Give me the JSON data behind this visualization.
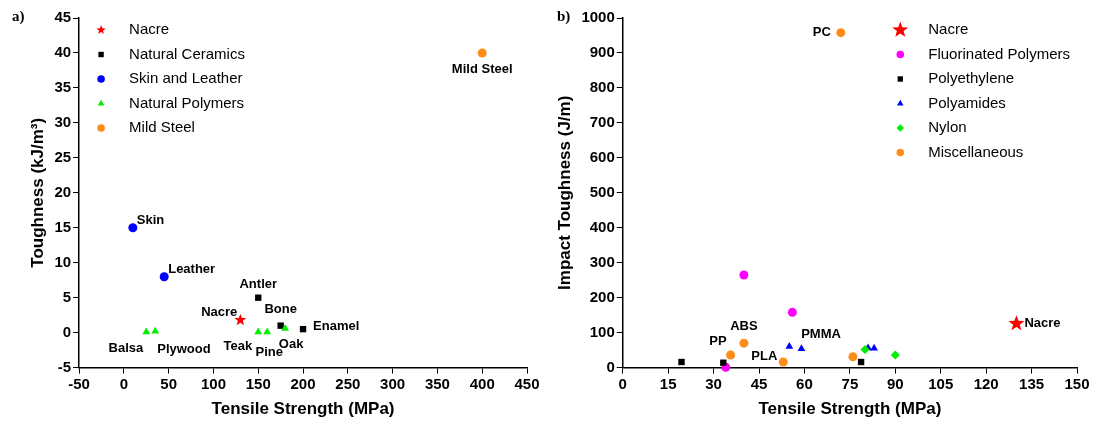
{
  "chart_data": [
    {
      "type": "scatter",
      "title": "a)",
      "xlabel": "Tensile Strength (MPa)",
      "ylabel": "Toughness (kJ/m³)",
      "xlim": [
        -50,
        450
      ],
      "xticks": [
        -50,
        0,
        50,
        100,
        150,
        200,
        250,
        300,
        350,
        400,
        450
      ],
      "ylim": [
        -5,
        45
      ],
      "yticks": [
        -5,
        0,
        5,
        10,
        15,
        20,
        25,
        30,
        35,
        40,
        45
      ],
      "grid": false,
      "legend": "top left",
      "series": [
        {
          "name": "Nacre",
          "color": "#ff0000",
          "marker": "star",
          "x": [
            130
          ],
          "values": [
            1.8
          ]
        },
        {
          "name": "Natural Ceramics",
          "color": "#000000",
          "marker": "square",
          "x": [
            150,
            175,
            200
          ],
          "values": [
            5,
            1,
            0.5
          ]
        },
        {
          "name": "Skin and Leather",
          "color": "#0000ff",
          "marker": "circle",
          "x": [
            10,
            45
          ],
          "values": [
            15,
            8
          ]
        },
        {
          "name": "Natural Polymers",
          "color": "#00ee00",
          "marker": "triangle",
          "x": [
            25,
            35,
            150,
            160,
            180
          ],
          "values": [
            0.1,
            0.2,
            0.1,
            0.1,
            0.6
          ]
        },
        {
          "name": "Mild Steel",
          "color": "#ff8c1a",
          "marker": "circle",
          "x": [
            400
          ],
          "values": [
            40
          ]
        }
      ],
      "annotations": [
        {
          "text": "Mild Steel",
          "x": 400,
          "y": 40
        },
        {
          "text": "Skin",
          "x": 10,
          "y": 15
        },
        {
          "text": "Leather",
          "x": 45,
          "y": 8
        },
        {
          "text": "Antler",
          "x": 150,
          "y": 5
        },
        {
          "text": "Nacre",
          "x": 130,
          "y": 1.8
        },
        {
          "text": "Bone",
          "x": 175,
          "y": 1
        },
        {
          "text": "Enamel",
          "x": 200,
          "y": 0.5
        },
        {
          "text": "Balsa",
          "x": 25,
          "y": 0.1
        },
        {
          "text": "Plywood",
          "x": 35,
          "y": 0.2
        },
        {
          "text": "Teak",
          "x": 150,
          "y": 0.1
        },
        {
          "text": "Pine",
          "x": 160,
          "y": 0.1
        },
        {
          "text": "Oak",
          "x": 180,
          "y": 0.6
        }
      ]
    },
    {
      "type": "scatter",
      "title": "b)",
      "xlabel": "Tensile Strength (MPa)",
      "ylabel": "Impact Toughness (J/m)",
      "xlim": [
        0,
        150
      ],
      "xticks": [
        0,
        15,
        30,
        45,
        60,
        75,
        90,
        105,
        120,
        135,
        150
      ],
      "ylim": [
        0,
        1000
      ],
      "yticks": [
        0,
        100,
        200,
        300,
        400,
        500,
        600,
        700,
        800,
        900,
        1000
      ],
      "grid": false,
      "legend": "top right",
      "series": [
        {
          "name": "Nacre",
          "color": "#ff0000",
          "marker": "star",
          "x": [
            130
          ],
          "values": [
            126
          ]
        },
        {
          "name": "Fluorinated Polymers",
          "color": "#ff00ff",
          "marker": "circle",
          "x": [
            40,
            56,
            34
          ],
          "values": [
            265,
            158,
            1
          ]
        },
        {
          "name": "Polyethylene",
          "color": "#000000",
          "marker": "square",
          "x": [
            19.4,
            33.2,
            78.7
          ],
          "values": [
            16,
            14,
            16
          ]
        },
        {
          "name": "Polyamides",
          "color": "#0000ff",
          "marker": "triangle",
          "x": [
            55,
            59,
            81,
            83
          ],
          "values": [
            60,
            54,
            56,
            55
          ]
        },
        {
          "name": "Nylon",
          "color": "#00ee00",
          "marker": "diamond",
          "x": [
            80,
            90
          ],
          "values": [
            52,
            36
          ]
        },
        {
          "name": "Miscellaneous",
          "color": "#ff8c1a",
          "marker": "circle",
          "x": [
            72,
            40,
            35.6,
            53,
            76
          ],
          "values": [
            958,
            70,
            36,
            16,
            31
          ]
        }
      ],
      "annotations": [
        {
          "text": "PC",
          "x": 72,
          "y": 958
        },
        {
          "text": "Nacre",
          "x": 130,
          "y": 126
        },
        {
          "text": "ABS",
          "x": 40,
          "y": 70
        },
        {
          "text": "PP",
          "x": 35.6,
          "y": 36
        },
        {
          "text": "PLA",
          "x": 53,
          "y": 16
        },
        {
          "text": "PMMA",
          "x": 76,
          "y": 31
        }
      ]
    }
  ]
}
